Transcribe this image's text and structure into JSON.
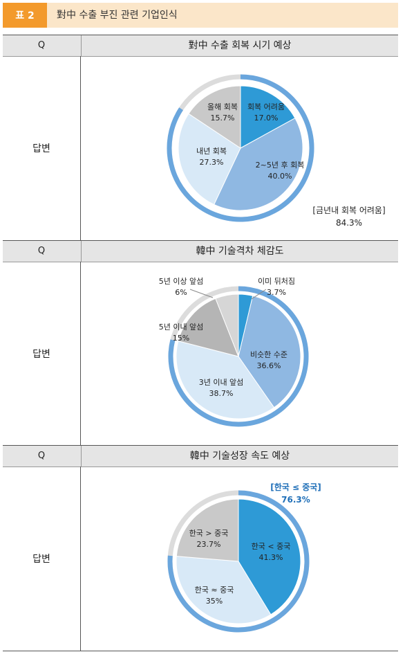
{
  "header": {
    "badge": "표 2",
    "title": "對中 수출 부진 관련 기업인식"
  },
  "sections": [
    {
      "q_label": "Q",
      "question": "對中 수출 회복 시기 예상",
      "answer_label": "답변",
      "callout": [
        "[금년내 회복 어려움]",
        "84.3%"
      ],
      "callout_color": "#222222"
    },
    {
      "q_label": "Q",
      "question": "韓中 기술격차 체감도",
      "answer_label": "답변"
    },
    {
      "q_label": "Q",
      "question": "韓中 기술성장 속도 예상",
      "answer_label": "답변",
      "callout": [
        "[한국 ≤ 중국]",
        "76.3%"
      ],
      "callout_color": "#1f6fb8"
    }
  ],
  "chart_data": [
    {
      "type": "pie",
      "title": "對中 수출 회복 시기 예상",
      "slices": [
        {
          "label": "회복 어려움",
          "value": 17.0,
          "value_label": "17.0%",
          "color": "#2e9ad6"
        },
        {
          "label": "2~5년 후 회복",
          "value": 40.0,
          "value_label": "40.0%",
          "color": "#8fb8e2"
        },
        {
          "label": "내년 회복",
          "value": 27.3,
          "value_label": "27.3%",
          "color": "#d8e9f7"
        },
        {
          "label": "올해 회복",
          "value": 15.7,
          "value_label": "15.7%",
          "color": "#c9c9c9"
        }
      ],
      "ring_span_percent": 84.3
    },
    {
      "type": "pie",
      "title": "韓中 기술격차 체감도",
      "slices": [
        {
          "label": "이미 뒤처짐",
          "value": 3.7,
          "value_label": "3.7%",
          "color": "#2e9ad6"
        },
        {
          "label": "비슷한 수준",
          "value": 36.6,
          "value_label": "36.6%",
          "color": "#8fb8e2"
        },
        {
          "label": "3년 이내 앞섬",
          "value": 38.7,
          "value_label": "38.7%",
          "color": "#d8e9f7"
        },
        {
          "label": "5년 이내 앞섬",
          "value": 15,
          "value_label": "15%",
          "color": "#b5b5b5"
        },
        {
          "label": "5년 이상 앞섬",
          "value": 6,
          "value_label": "6%",
          "color": "#d6d6d6"
        }
      ],
      "ring_span_percent": 78.9
    },
    {
      "type": "pie",
      "title": "韓中 기술성장 속도 예상",
      "slices": [
        {
          "label": "한국 < 중국",
          "value": 41.3,
          "value_label": "41.3%",
          "color": "#2e9ad6"
        },
        {
          "label": "한국 ≈ 중국",
          "value": 35,
          "value_label": "35%",
          "color": "#d8e9f7"
        },
        {
          "label": "한국 > 중국",
          "value": 23.7,
          "value_label": "23.7%",
          "color": "#c9c9c9"
        }
      ],
      "ring_span_percent": 76.3
    }
  ]
}
